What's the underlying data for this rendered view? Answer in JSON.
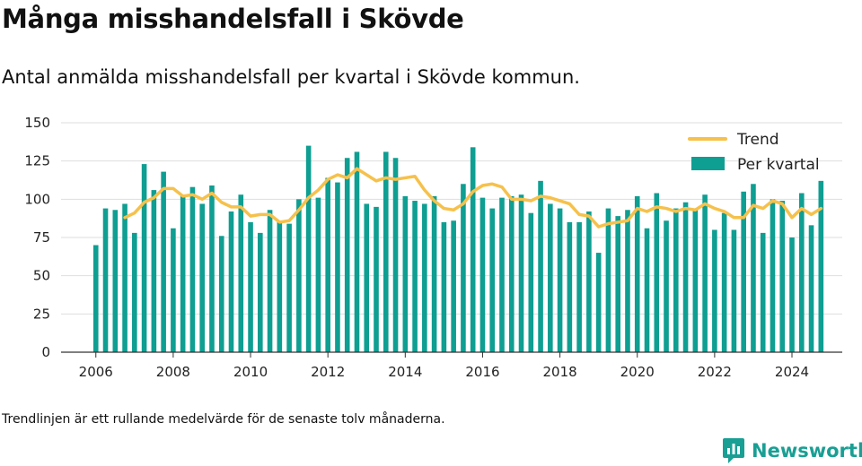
{
  "title": "Många misshandelsfall i Skövde",
  "subtitle": "Antal anmälda misshandelsfall per kvartal i Skövde kommun.",
  "footnote": "Trendlinjen är ett rullande medelvärde för de senaste tolv månaderna.",
  "brand": {
    "name": "Newsworthy",
    "icon": "bar-chart-logo-icon"
  },
  "colors": {
    "bars": "#0f9e92",
    "trend": "#f6c14b",
    "grid": "#dedede",
    "axis": "#333333",
    "brand": "#199f94"
  },
  "chart_data": {
    "type": "bar",
    "title": "Många misshandelsfall i Skövde",
    "subtitle": "Antal anmälda misshandelsfall per kvartal i Skövde kommun.",
    "xlabel": "",
    "ylabel": "",
    "ylim": [
      0,
      150
    ],
    "yticks": [
      0,
      25,
      50,
      75,
      100,
      125,
      150
    ],
    "xlim": [
      2005.1,
      2025.3
    ],
    "xticks": [
      2006,
      2008,
      2010,
      2012,
      2014,
      2016,
      2018,
      2020,
      2022,
      2024
    ],
    "grid": true,
    "legend_position": "top-right",
    "legend": [
      "Trend",
      "Per kvartal"
    ],
    "x": [
      2006.0,
      2006.25,
      2006.5,
      2006.75,
      2007.0,
      2007.25,
      2007.5,
      2007.75,
      2008.0,
      2008.25,
      2008.5,
      2008.75,
      2009.0,
      2009.25,
      2009.5,
      2009.75,
      2010.0,
      2010.25,
      2010.5,
      2010.75,
      2011.0,
      2011.25,
      2011.5,
      2011.75,
      2012.0,
      2012.25,
      2012.5,
      2012.75,
      2013.0,
      2013.25,
      2013.5,
      2013.75,
      2014.0,
      2014.25,
      2014.5,
      2014.75,
      2015.0,
      2015.25,
      2015.5,
      2015.75,
      2016.0,
      2016.25,
      2016.5,
      2016.75,
      2017.0,
      2017.25,
      2017.5,
      2017.75,
      2018.0,
      2018.25,
      2018.5,
      2018.75,
      2019.0,
      2019.25,
      2019.5,
      2019.75,
      2020.0,
      2020.25,
      2020.5,
      2020.75,
      2021.0,
      2021.25,
      2021.5,
      2021.75,
      2022.0,
      2022.25,
      2022.5,
      2022.75,
      2023.0,
      2023.25,
      2023.5,
      2023.75,
      2024.0,
      2024.25,
      2024.5,
      2024.75
    ],
    "series": [
      {
        "name": "Per kvartal",
        "type": "bar",
        "values": [
          70,
          94,
          93,
          97,
          78,
          123,
          106,
          118,
          81,
          102,
          108,
          97,
          109,
          76,
          92,
          103,
          85,
          78,
          93,
          85,
          84,
          100,
          135,
          101,
          114,
          111,
          127,
          131,
          97,
          95,
          131,
          127,
          102,
          99,
          97,
          102,
          85,
          86,
          110,
          134,
          101,
          94,
          101,
          102,
          103,
          91,
          112,
          97,
          94,
          85,
          85,
          92,
          65,
          94,
          89,
          93,
          102,
          81,
          104,
          86,
          94,
          98,
          93,
          103,
          80,
          91,
          80,
          105,
          110,
          78,
          100,
          99,
          75,
          104,
          83,
          112
        ]
      },
      {
        "name": "Trend",
        "type": "line",
        "x": [
          2006.75,
          2007.0,
          2007.25,
          2007.5,
          2007.75,
          2008.0,
          2008.25,
          2008.5,
          2008.75,
          2009.0,
          2009.25,
          2009.5,
          2009.75,
          2010.0,
          2010.25,
          2010.5,
          2010.75,
          2011.0,
          2011.25,
          2011.5,
          2011.75,
          2012.0,
          2012.25,
          2012.5,
          2012.75,
          2013.0,
          2013.25,
          2013.5,
          2013.75,
          2014.0,
          2014.25,
          2014.5,
          2014.75,
          2015.0,
          2015.25,
          2015.5,
          2015.75,
          2016.0,
          2016.25,
          2016.5,
          2016.75,
          2017.0,
          2017.25,
          2017.5,
          2017.75,
          2018.0,
          2018.25,
          2018.5,
          2018.75,
          2019.0,
          2019.25,
          2019.5,
          2019.75,
          2020.0,
          2020.25,
          2020.5,
          2020.75,
          2021.0,
          2021.25,
          2021.5,
          2021.75,
          2022.0,
          2022.25,
          2022.5,
          2022.75,
          2023.0,
          2023.25,
          2023.5,
          2023.75,
          2024.0,
          2024.25,
          2024.5,
          2024.75
        ],
        "values": [
          88,
          91,
          98,
          101,
          107,
          107,
          102,
          103,
          100,
          104,
          98,
          95,
          95,
          89,
          90,
          90,
          85,
          86,
          93,
          101,
          106,
          113,
          116,
          114,
          120,
          116,
          112,
          114,
          113,
          114,
          115,
          106,
          99,
          94,
          93,
          97,
          105,
          109,
          110,
          108,
          100,
          100,
          99,
          102,
          101,
          99,
          97,
          90,
          89,
          82,
          84,
          85,
          86,
          94,
          92,
          95,
          94,
          92,
          94,
          93,
          97,
          94,
          92,
          88,
          88,
          96,
          94,
          99,
          97,
          88,
          94,
          90,
          94
        ]
      }
    ]
  }
}
